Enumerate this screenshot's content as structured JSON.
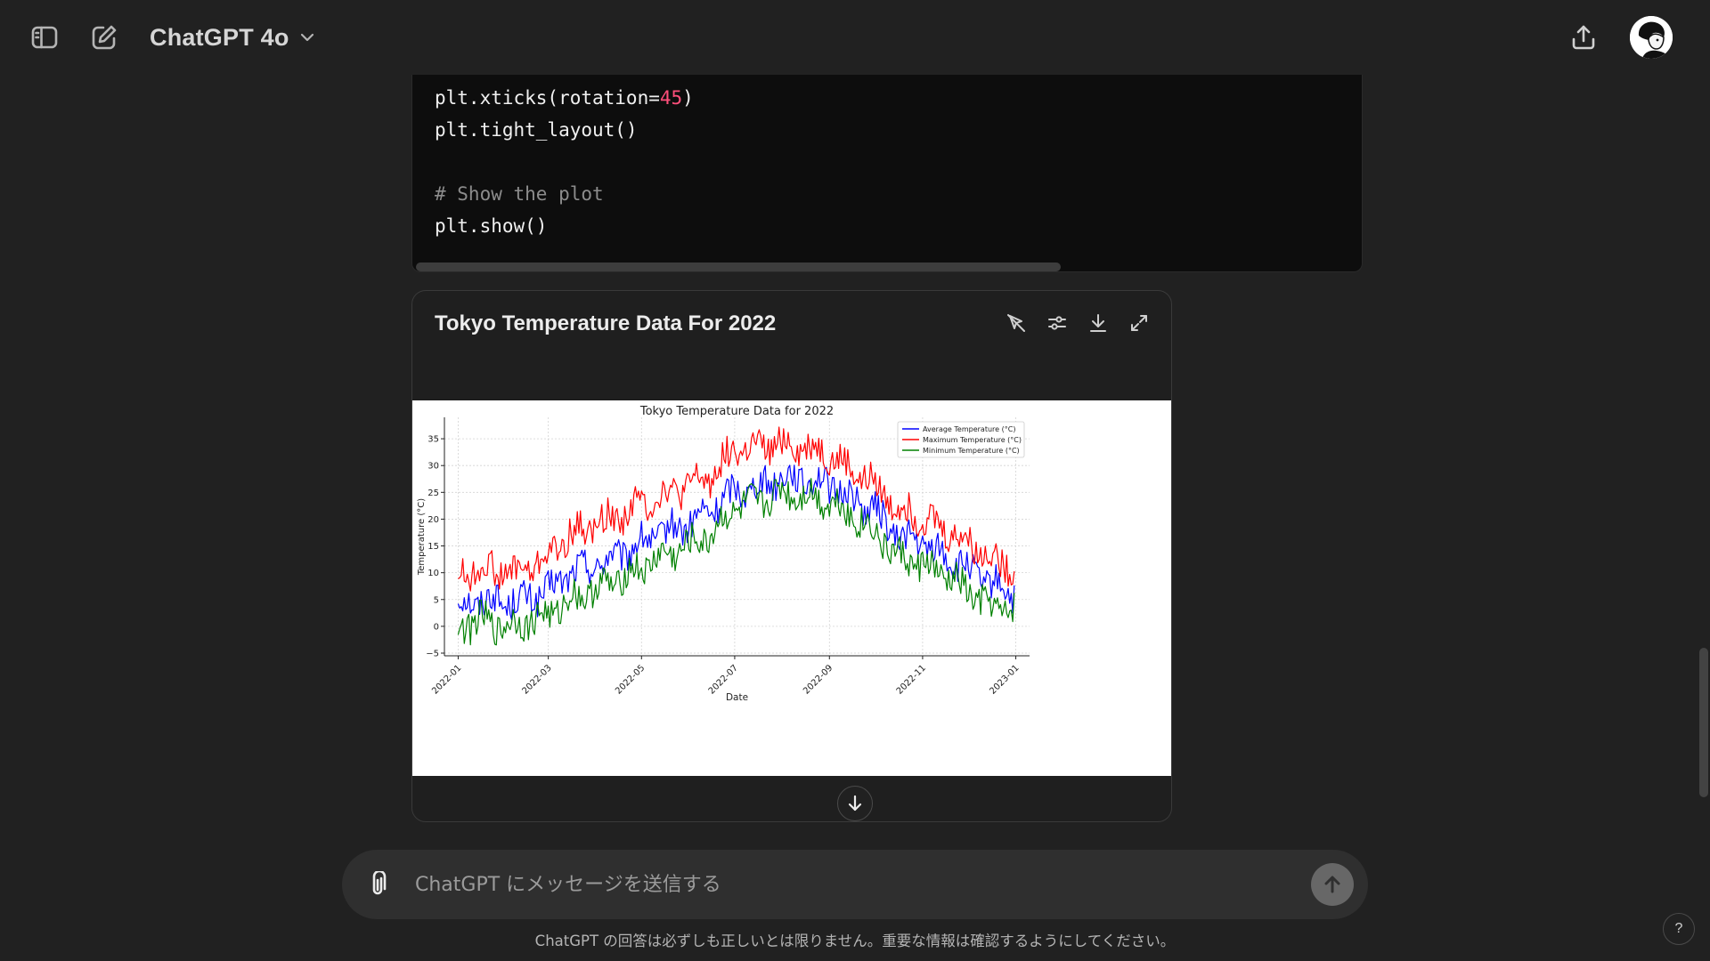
{
  "header": {
    "model_name": "ChatGPT 4o",
    "icons": [
      "sidebar-toggle-icon",
      "new-chat-icon",
      "chevron-down-icon",
      "share-icon"
    ]
  },
  "code_block": {
    "lines": [
      {
        "parts": [
          {
            "t": "plt.xticks(rotation=",
            "c": "plain"
          },
          {
            "t": "45",
            "c": "num"
          },
          {
            "t": ")",
            "c": "plain"
          }
        ]
      },
      {
        "parts": [
          {
            "t": "plt.tight_layout()",
            "c": "plain"
          }
        ]
      },
      {
        "parts": [
          {
            "t": "",
            "c": "plain"
          }
        ]
      },
      {
        "parts": [
          {
            "t": "# Show the plot",
            "c": "comment"
          }
        ]
      },
      {
        "parts": [
          {
            "t": "plt.show()",
            "c": "plain"
          }
        ]
      }
    ]
  },
  "chart_card": {
    "title": "Tokyo Temperature Data For 2022",
    "tools": [
      "interactive-chart-icon",
      "customize-icon",
      "download-icon",
      "expand-icon"
    ]
  },
  "chart_data": {
    "type": "line",
    "title": "Tokyo Temperature Data for 2022",
    "xlabel": "Date",
    "ylabel": "Temperature (°C)",
    "xlim": [
      "2021-12-23",
      "2023-01-10"
    ],
    "ylim": [
      -5.5,
      39
    ],
    "x_ticks": [
      "2022-01",
      "2022-03",
      "2022-05",
      "2022-07",
      "2022-09",
      "2022-11",
      "2023-01"
    ],
    "y_ticks": [
      -5,
      0,
      5,
      10,
      15,
      20,
      25,
      30,
      35
    ],
    "grid": true,
    "legend": "top-right",
    "series": [
      {
        "name": "Average Temperature (°C)",
        "color": "#0000ff",
        "dates": [
          "2022-01-01",
          "2022-01-15",
          "2022-02-01",
          "2022-02-15",
          "2022-03-01",
          "2022-03-15",
          "2022-04-01",
          "2022-04-15",
          "2022-05-01",
          "2022-05-15",
          "2022-06-01",
          "2022-06-15",
          "2022-07-01",
          "2022-07-15",
          "2022-08-01",
          "2022-08-15",
          "2022-09-01",
          "2022-09-15",
          "2022-10-01",
          "2022-10-15",
          "2022-11-01",
          "2022-11-15",
          "2022-12-01",
          "2022-12-15",
          "2022-12-31"
        ],
        "values": [
          4,
          5,
          4.5,
          5,
          6.5,
          10,
          11.5,
          13,
          15.5,
          17.5,
          19,
          21.5,
          25.5,
          26,
          28,
          27.5,
          26.5,
          24,
          21.5,
          17,
          15.5,
          13,
          10.5,
          8,
          6
        ]
      },
      {
        "name": "Maximum Temperature (°C)",
        "color": "#ff0000",
        "dates": [
          "2022-01-01",
          "2022-01-15",
          "2022-02-01",
          "2022-02-15",
          "2022-03-01",
          "2022-03-15",
          "2022-04-01",
          "2022-04-15",
          "2022-05-01",
          "2022-05-15",
          "2022-06-01",
          "2022-06-15",
          "2022-07-01",
          "2022-07-15",
          "2022-08-01",
          "2022-08-15",
          "2022-09-01",
          "2022-09-15",
          "2022-10-01",
          "2022-10-15",
          "2022-11-01",
          "2022-11-15",
          "2022-12-01",
          "2022-12-15",
          "2022-12-31"
        ],
        "values": [
          9,
          11,
          10,
          10.5,
          13,
          17,
          19,
          20.5,
          23,
          24.5,
          26,
          28,
          33,
          33,
          34,
          33.5,
          32,
          29,
          26.5,
          22,
          20.5,
          18,
          15.5,
          13,
          11
        ]
      },
      {
        "name": "Minimum Temperature (°C)",
        "color": "#008000",
        "dates": [
          "2022-01-01",
          "2022-01-15",
          "2022-02-01",
          "2022-02-15",
          "2022-03-01",
          "2022-03-15",
          "2022-04-01",
          "2022-04-15",
          "2022-05-01",
          "2022-05-15",
          "2022-06-01",
          "2022-06-15",
          "2022-07-01",
          "2022-07-15",
          "2022-08-01",
          "2022-08-15",
          "2022-09-01",
          "2022-09-15",
          "2022-10-01",
          "2022-10-15",
          "2022-11-01",
          "2022-11-15",
          "2022-12-01",
          "2022-12-15",
          "2022-12-31"
        ],
        "values": [
          0,
          1,
          0,
          1,
          2,
          5,
          7,
          8.5,
          11,
          13,
          15,
          17,
          22,
          23,
          25,
          24.5,
          23.5,
          21,
          17.5,
          13,
          11.5,
          9.5,
          6.5,
          3.5,
          3
        ]
      }
    ]
  },
  "composer": {
    "placeholder": "ChatGPT にメッセージを送信する",
    "value": ""
  },
  "disclaimer": "ChatGPT の回答は必ずしも正しいとは限りません。重要な情報は確認するようにしてください。",
  "help_label": "?"
}
